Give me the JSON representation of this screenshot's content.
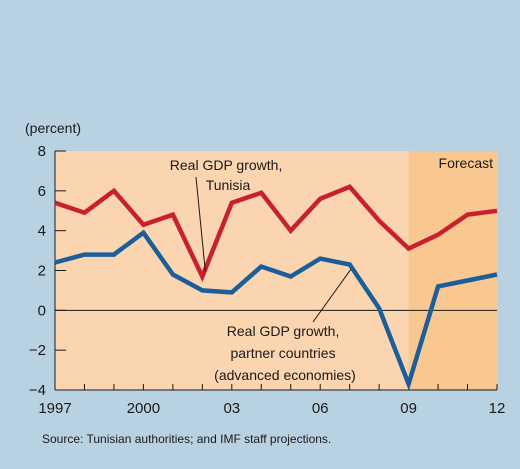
{
  "chart_data": {
    "type": "line",
    "unit_label": "(percent)",
    "x": [
      1997,
      1998,
      1999,
      2000,
      2001,
      2002,
      2003,
      2004,
      2005,
      2006,
      2007,
      2008,
      2009,
      2010,
      2011,
      2012
    ],
    "x_tick_labels": [
      "1997",
      "2000",
      "03",
      "06",
      "09",
      "12"
    ],
    "y_ticks": [
      "8",
      "6",
      "4",
      "2",
      "0",
      "−2",
      "−4"
    ],
    "ylim": [
      -4,
      8
    ],
    "xlim": [
      1997,
      2012
    ],
    "forecast_start": 2009,
    "forecast_label": "Forecast",
    "series": [
      {
        "name": "Real GDP growth, Tunisia",
        "label_lines": [
          "Real GDP growth,",
          "Tunisia"
        ],
        "color": "#c8202e",
        "values": [
          5.4,
          4.9,
          6.0,
          4.3,
          4.8,
          1.7,
          5.4,
          5.9,
          4.0,
          5.6,
          6.2,
          4.5,
          3.1,
          3.8,
          4.8,
          5.0
        ]
      },
      {
        "name": "Real GDP growth, partner countries (advanced economies)",
        "label_lines": [
          "Real GDP growth,",
          "partner countries",
          "(advanced economies)"
        ],
        "color": "#1c5e9a",
        "values": [
          2.4,
          2.8,
          2.8,
          3.9,
          1.8,
          1.0,
          0.9,
          2.2,
          1.7,
          2.6,
          2.3,
          0.1,
          -3.7,
          1.2,
          1.5,
          1.8
        ]
      }
    ],
    "colors": {
      "background": "#b9d2e2",
      "plot_area": "#fbd4b0",
      "forecast_area": "#f8c890"
    },
    "source": "Source: Tunisian authorities; and IMF staff projections."
  }
}
